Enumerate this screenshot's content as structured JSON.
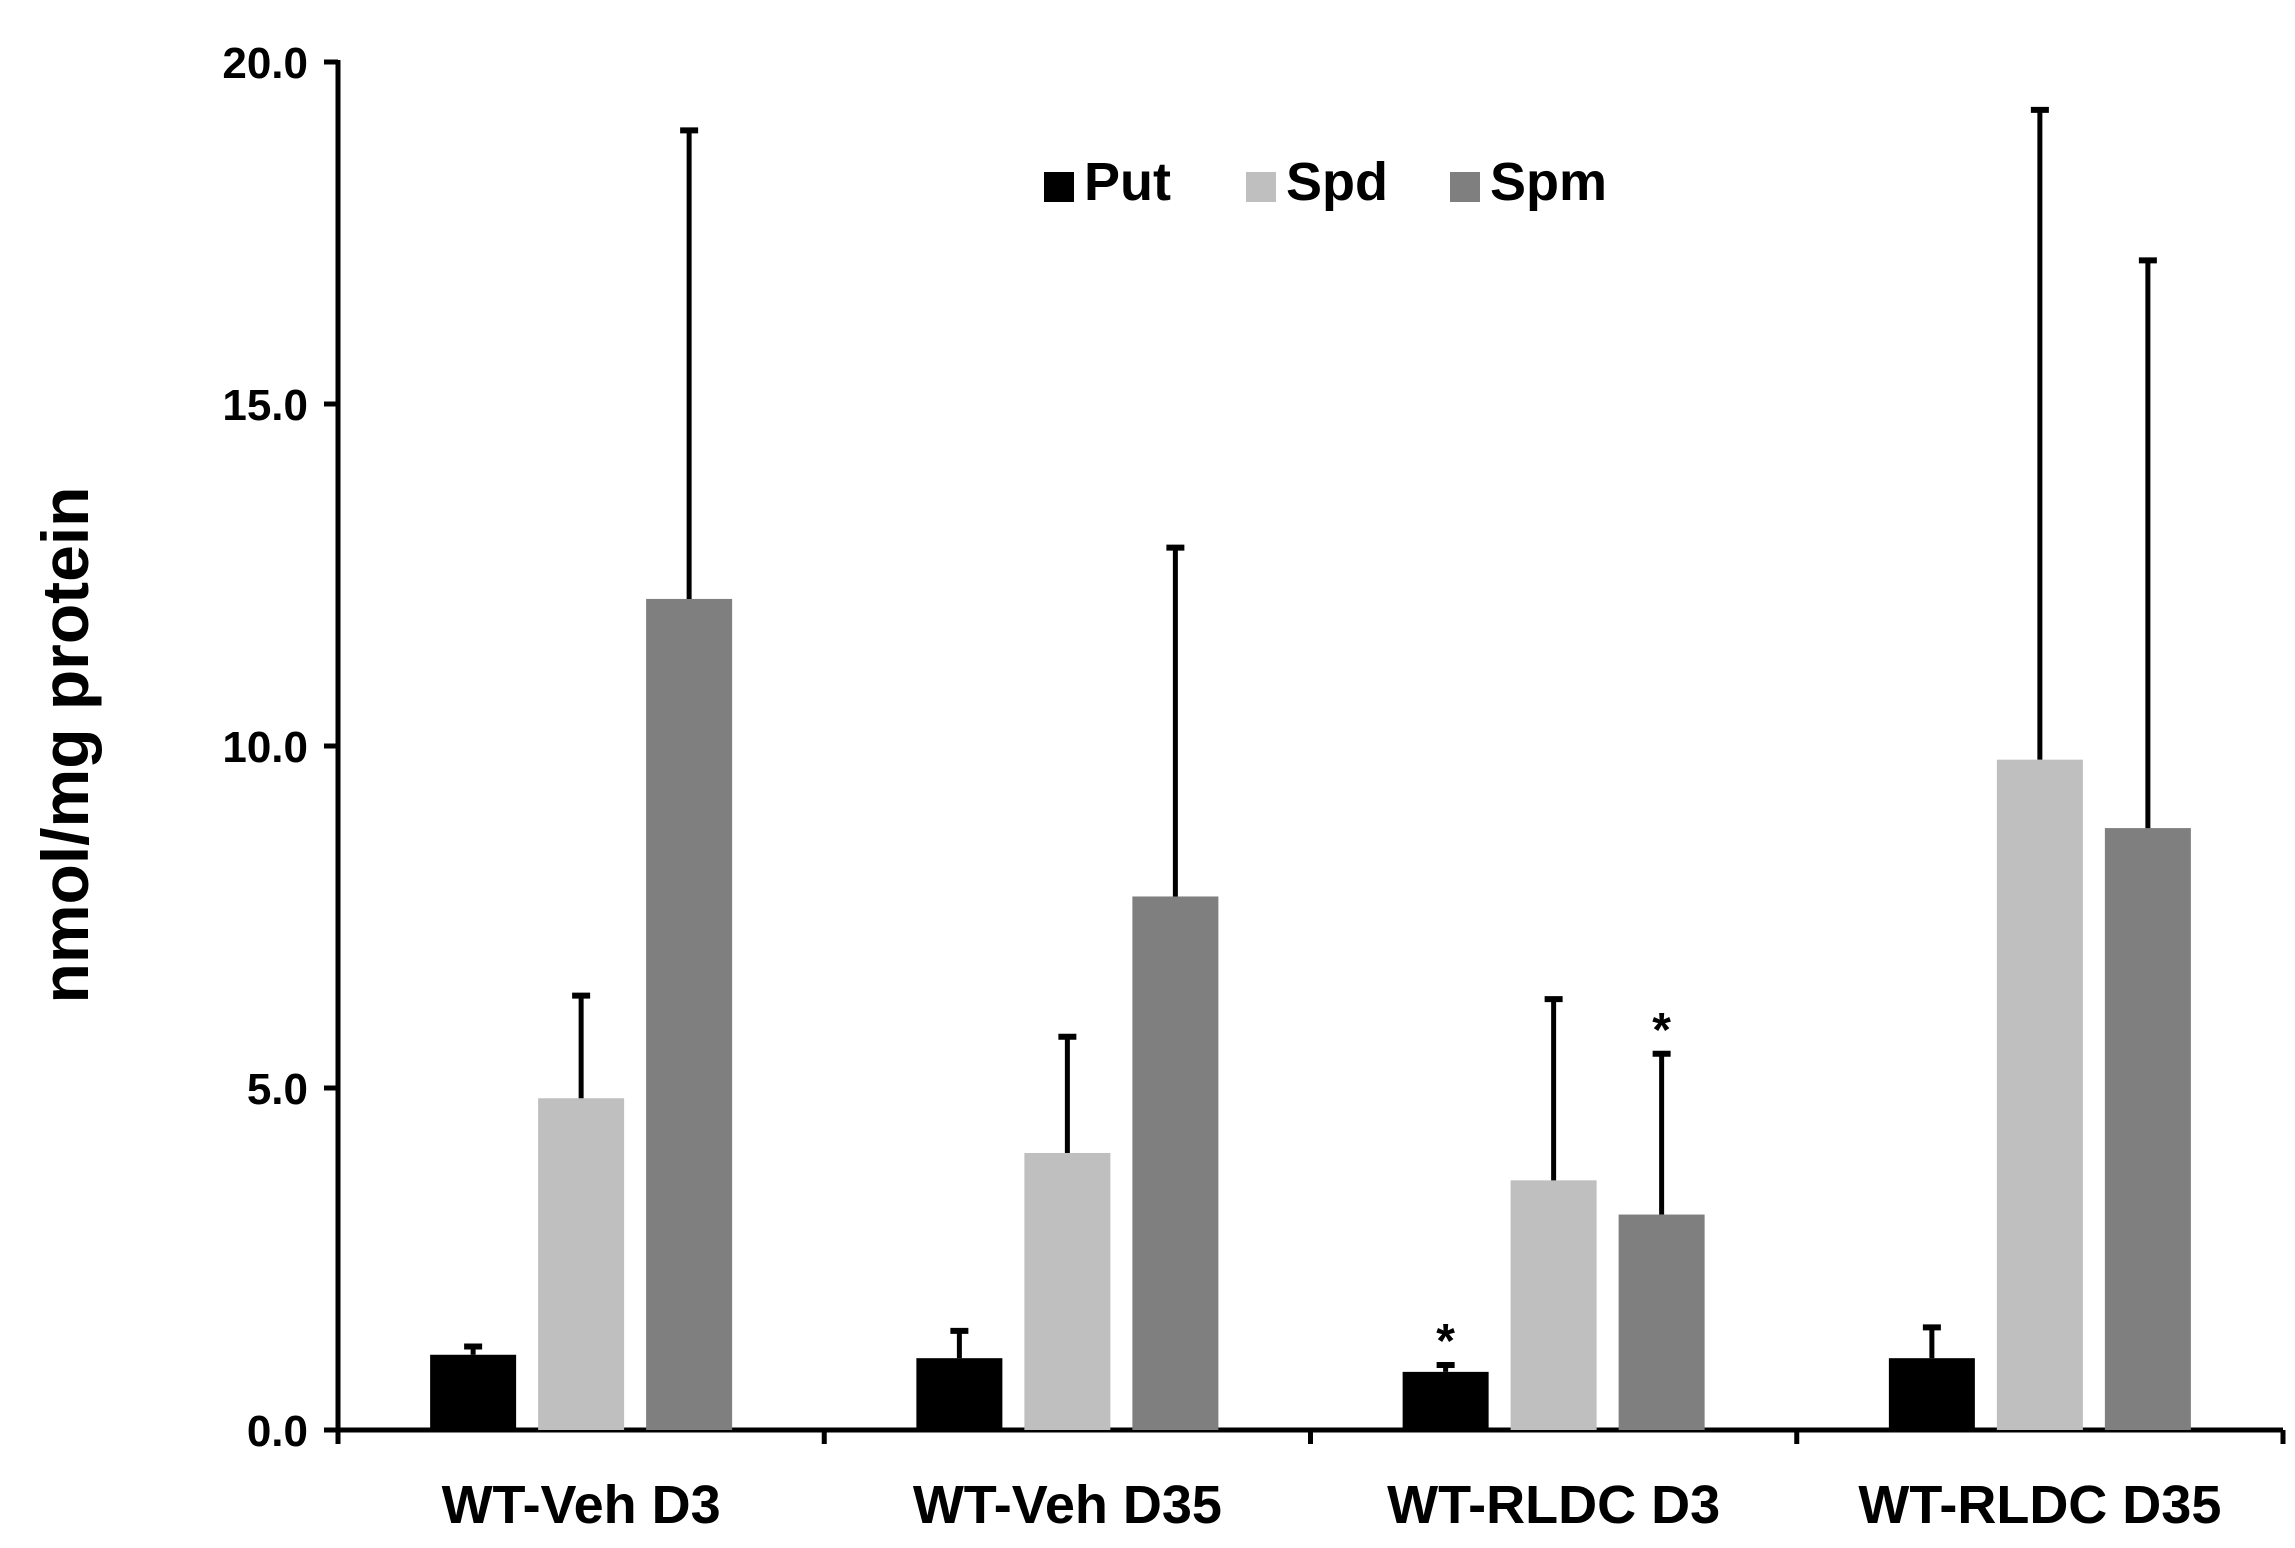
{
  "chart_data": {
    "type": "bar",
    "title": "",
    "xlabel": "",
    "ylabel": "nmol/mg protein",
    "ylim": [
      0,
      20
    ],
    "yticks": [
      0,
      5,
      10,
      15,
      20
    ],
    "ytick_labels": [
      "0.0",
      "5.0",
      "10.0",
      "15.0",
      "20.0"
    ],
    "grid": false,
    "legend_position": "top-center",
    "categories": [
      "WT-Veh D3",
      "WT-Veh D35",
      "WT-RLDC D3",
      "WT-RLDC D35"
    ],
    "series": [
      {
        "name": "Put",
        "color": "#000000",
        "values": [
          1.1,
          1.05,
          0.85,
          1.05
        ],
        "errors": [
          0.12,
          0.4,
          0.1,
          0.45
        ],
        "significance": [
          "",
          "",
          "*",
          ""
        ]
      },
      {
        "name": "Spd",
        "color": "#bfbfbf",
        "values": [
          4.85,
          4.05,
          3.65,
          9.8
        ],
        "errors": [
          1.5,
          1.7,
          2.65,
          9.5
        ],
        "significance": [
          "",
          "",
          "",
          ""
        ]
      },
      {
        "name": "Spm",
        "color": "#7f7f7f",
        "values": [
          12.15,
          7.8,
          3.15,
          8.8
        ],
        "errors": [
          6.85,
          5.1,
          2.35,
          8.3
        ],
        "significance": [
          "",
          "",
          "*",
          ""
        ]
      }
    ]
  }
}
